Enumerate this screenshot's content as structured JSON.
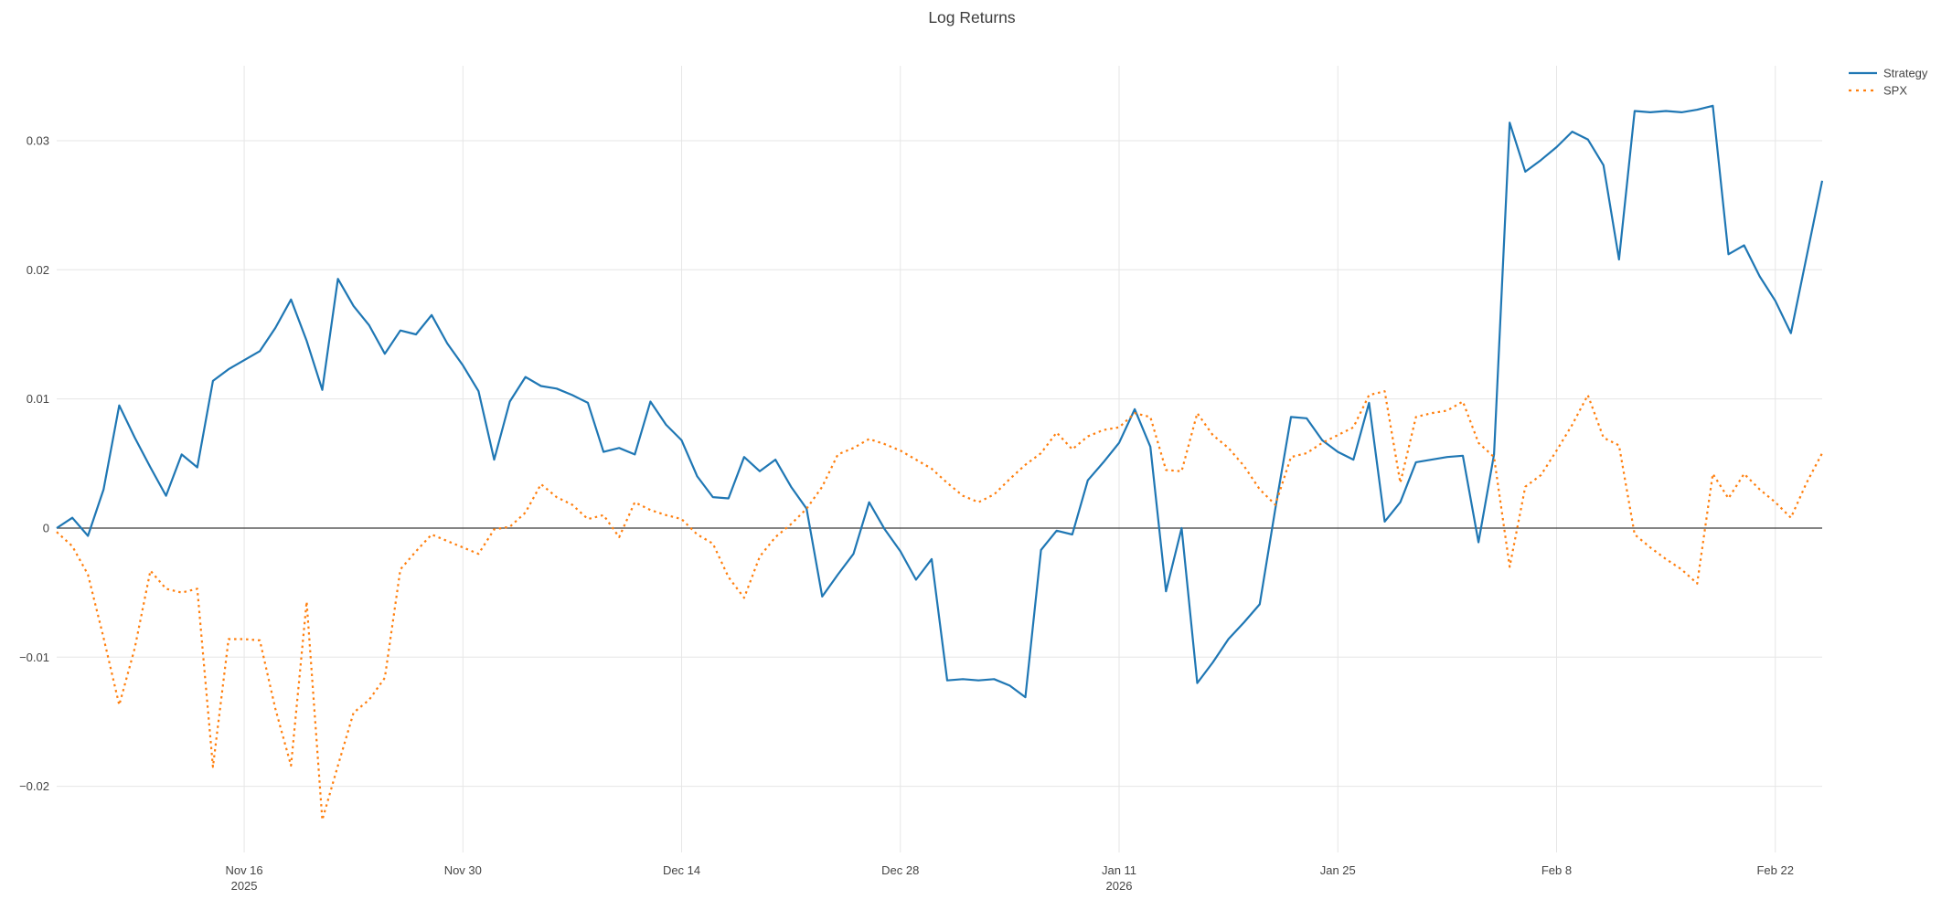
{
  "page": {
    "background": "#ffffff"
  },
  "chart_data": {
    "type": "line",
    "title": "Log Returns",
    "xlabel": "",
    "ylabel": "",
    "grid": true,
    "legend_position": "top-right-outside",
    "x_unit": "daily points; index 0 = first visible day, ticks mark the labeled dates",
    "xlim": [
      0,
      113
    ],
    "ylim": [
      -0.0242,
      0.0358
    ],
    "yticks": [
      -0.02,
      -0.01,
      0,
      0.01,
      0.02,
      0.03
    ],
    "xticks": [
      {
        "pos": 12,
        "label": "Nov 16",
        "sublabel": "2025"
      },
      {
        "pos": 26,
        "label": "Nov 30",
        "sublabel": ""
      },
      {
        "pos": 40,
        "label": "Dec 14",
        "sublabel": ""
      },
      {
        "pos": 54,
        "label": "Dec 28",
        "sublabel": ""
      },
      {
        "pos": 68,
        "label": "Jan 11",
        "sublabel": "2026"
      },
      {
        "pos": 82,
        "label": "Jan 25",
        "sublabel": ""
      },
      {
        "pos": 96,
        "label": "Feb 8",
        "sublabel": ""
      },
      {
        "pos": 110,
        "label": "Feb 22",
        "sublabel": ""
      }
    ],
    "colors": {
      "strategy": "#1f77b4",
      "spx": "#ff7f0e",
      "grid": "#e6e6e6",
      "zeroline": "#3b3b3b",
      "text": "#444444"
    },
    "series": [
      {
        "name": "Strategy",
        "color": "#1f77b4",
        "style": "solid",
        "values": [
          0.0,
          0.0008,
          -0.0006,
          0.003,
          0.0095,
          0.007,
          0.0047,
          0.0025,
          0.0057,
          0.0047,
          0.0114,
          0.0123,
          0.013,
          0.0137,
          0.0155,
          0.0177,
          0.0145,
          0.0107,
          0.0193,
          0.0172,
          0.0157,
          0.0135,
          0.0153,
          0.015,
          0.0165,
          0.0143,
          0.0126,
          0.0106,
          0.0053,
          0.0098,
          0.0117,
          0.011,
          0.0108,
          0.0103,
          0.0097,
          0.0059,
          0.0062,
          0.0057,
          0.0098,
          0.008,
          0.0068,
          0.004,
          0.0024,
          0.0023,
          0.0055,
          0.0044,
          0.0053,
          0.0032,
          0.0015,
          -0.0053,
          -0.0036,
          -0.002,
          0.002,
          -0.0001,
          -0.0018,
          -0.004,
          -0.0024,
          -0.0118,
          -0.0117,
          -0.0118,
          -0.0117,
          -0.0122,
          -0.0131,
          -0.0017,
          -0.0002,
          -0.0005,
          0.0037,
          0.0051,
          0.0066,
          0.0092,
          0.0063,
          -0.0049,
          0.0,
          -0.012,
          -0.0104,
          -0.0086,
          -0.0073,
          -0.0059,
          0.0015,
          0.0086,
          0.0085,
          0.0068,
          0.0059,
          0.0053,
          0.0097,
          0.0005,
          0.002,
          0.0051,
          0.0053,
          0.0055,
          0.0056,
          -0.0011,
          0.0057,
          0.0314,
          0.0276,
          0.0285,
          0.0295,
          0.0307,
          0.0301,
          0.0281,
          0.0208,
          0.0323,
          0.0322,
          0.0323,
          0.0322,
          0.0324,
          0.0327,
          0.0212,
          0.0219,
          0.0195,
          0.0176,
          0.0151,
          0.021,
          0.0269
        ]
      },
      {
        "name": "SPX",
        "color": "#ff7f0e",
        "style": "dotted",
        "values": [
          -0.0003,
          -0.0014,
          -0.0036,
          -0.0085,
          -0.0137,
          -0.0093,
          -0.0033,
          -0.0047,
          -0.005,
          -0.0047,
          -0.0185,
          -0.0086,
          -0.0086,
          -0.0087,
          -0.014,
          -0.0184,
          -0.0057,
          -0.0226,
          -0.0184,
          -0.0143,
          -0.0133,
          -0.0116,
          -0.0032,
          -0.0018,
          -0.0005,
          -0.001,
          -0.0015,
          -0.002,
          -0.0001,
          0.0001,
          0.0012,
          0.0034,
          0.0024,
          0.0018,
          0.0007,
          0.001,
          -0.0007,
          0.002,
          0.0014,
          0.001,
          0.0007,
          -0.0005,
          -0.0012,
          -0.0038,
          -0.0054,
          -0.0022,
          -0.0007,
          0.0003,
          0.0015,
          0.0032,
          0.0057,
          0.0062,
          0.0069,
          0.0065,
          0.006,
          0.0053,
          0.0046,
          0.0035,
          0.0025,
          0.002,
          0.0026,
          0.0038,
          0.0049,
          0.0058,
          0.0074,
          0.0061,
          0.0071,
          0.0076,
          0.0078,
          0.0089,
          0.0086,
          0.0045,
          0.0044,
          0.0089,
          0.0072,
          0.0062,
          0.0048,
          0.003,
          0.0018,
          0.0055,
          0.0058,
          0.0066,
          0.0072,
          0.0078,
          0.0103,
          0.0106,
          0.0035,
          0.0086,
          0.0089,
          0.0091,
          0.0098,
          0.0066,
          0.0055,
          -0.003,
          0.0032,
          0.0041,
          0.006,
          0.008,
          0.0103,
          0.007,
          0.0064,
          -0.0005,
          -0.0015,
          -0.0024,
          -0.0032,
          -0.0043,
          0.0042,
          0.0023,
          0.0042,
          0.003,
          0.002,
          0.0008,
          0.0035,
          0.0058
        ]
      }
    ]
  }
}
